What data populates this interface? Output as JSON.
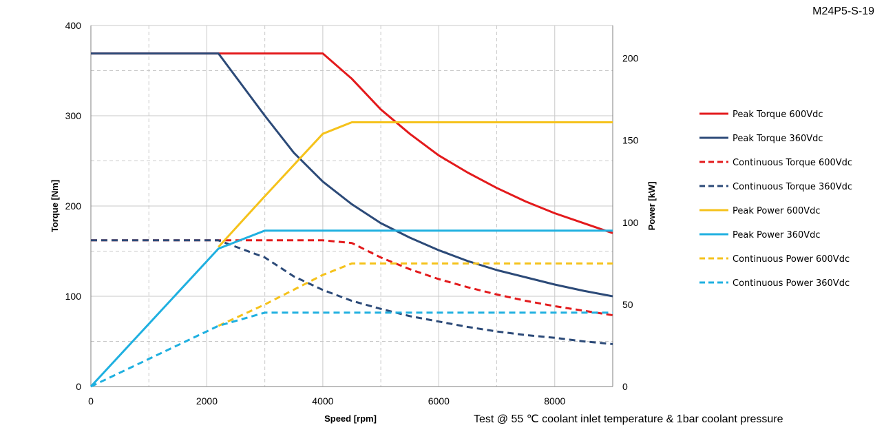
{
  "corner_label": "M24P5-S-19",
  "footnote": "Test @ 55 ℃ coolant inlet temperature & 1bar coolant pressure",
  "chart_data": {
    "type": "line",
    "xlabel": "Speed [rpm]",
    "ylabel": "Torque [Nm]",
    "y2label": "Power [kW]",
    "xlim": [
      0,
      9000
    ],
    "ylim": [
      0,
      400
    ],
    "y2lim": [
      0,
      220
    ],
    "xticks": [
      "0",
      "2000",
      "4000",
      "6000",
      "8000"
    ],
    "yticks": [
      "0",
      "100",
      "200",
      "300",
      "400"
    ],
    "y2ticks": [
      "0",
      "50",
      "100",
      "150",
      "200"
    ],
    "grid": true,
    "legend_position": "right",
    "series": [
      {
        "name": "Peak Torque 600Vdc",
        "axis": "left",
        "color": "#e31a1c",
        "dash": false,
        "x": [
          0,
          2200,
          4000,
          4500,
          5000,
          5500,
          6000,
          6500,
          7000,
          7500,
          8000,
          8500,
          9000
        ],
        "y": [
          369,
          369,
          369,
          341,
          307,
          280,
          256,
          237,
          220,
          205,
          192,
          181,
          170
        ]
      },
      {
        "name": "Peak Torque 360Vdc",
        "axis": "left",
        "color": "#2c4a78",
        "dash": false,
        "x": [
          0,
          2200,
          3000,
          3500,
          4000,
          4500,
          5000,
          5500,
          6000,
          6500,
          7000,
          7500,
          8000,
          8500,
          9000
        ],
        "y": [
          369,
          369,
          300,
          259,
          227,
          202,
          181,
          165,
          151,
          139,
          129,
          121,
          113,
          106,
          100
        ]
      },
      {
        "name": "Continuous Torque 600Vdc",
        "axis": "left",
        "color": "#e31a1c",
        "dash": true,
        "x": [
          0,
          2200,
          4000,
          4500,
          5000,
          5500,
          6000,
          6500,
          7000,
          7500,
          8000,
          8500,
          9000
        ],
        "y": [
          162,
          162,
          162,
          159,
          143,
          130,
          119,
          110,
          102,
          95,
          89,
          84,
          79
        ]
      },
      {
        "name": "Continuous Torque 360Vdc",
        "axis": "left",
        "color": "#2c4a78",
        "dash": true,
        "x": [
          0,
          2200,
          3000,
          3500,
          4000,
          4500,
          5000,
          5500,
          6000,
          6500,
          7000,
          7500,
          8000,
          8500,
          9000
        ],
        "y": [
          162,
          162,
          143,
          122,
          107,
          95,
          86,
          78,
          72,
          66,
          61,
          57,
          54,
          50,
          47
        ]
      },
      {
        "name": "Peak Power 600Vdc",
        "axis": "right",
        "color": "#f5c21b",
        "dash": false,
        "x": [
          2200,
          3000,
          4000,
          4500,
          9000
        ],
        "y": [
          85,
          116,
          154,
          161,
          161
        ]
      },
      {
        "name": "Peak Power 360Vdc",
        "axis": "right",
        "color": "#1fb0e0",
        "dash": false,
        "x": [
          0,
          2200,
          3000,
          9000
        ],
        "y": [
          0,
          84,
          95,
          95
        ]
      },
      {
        "name": "Continuous Power 600Vdc",
        "axis": "right",
        "color": "#f5c21b",
        "dash": true,
        "x": [
          2200,
          3000,
          4000,
          4500,
          9000
        ],
        "y": [
          37,
          50,
          68,
          75,
          75
        ]
      },
      {
        "name": "Continuous Power 360Vdc",
        "axis": "right",
        "color": "#1fb0e0",
        "dash": true,
        "x": [
          0,
          2200,
          3000,
          9000
        ],
        "y": [
          0,
          37,
          45,
          45
        ]
      }
    ]
  }
}
